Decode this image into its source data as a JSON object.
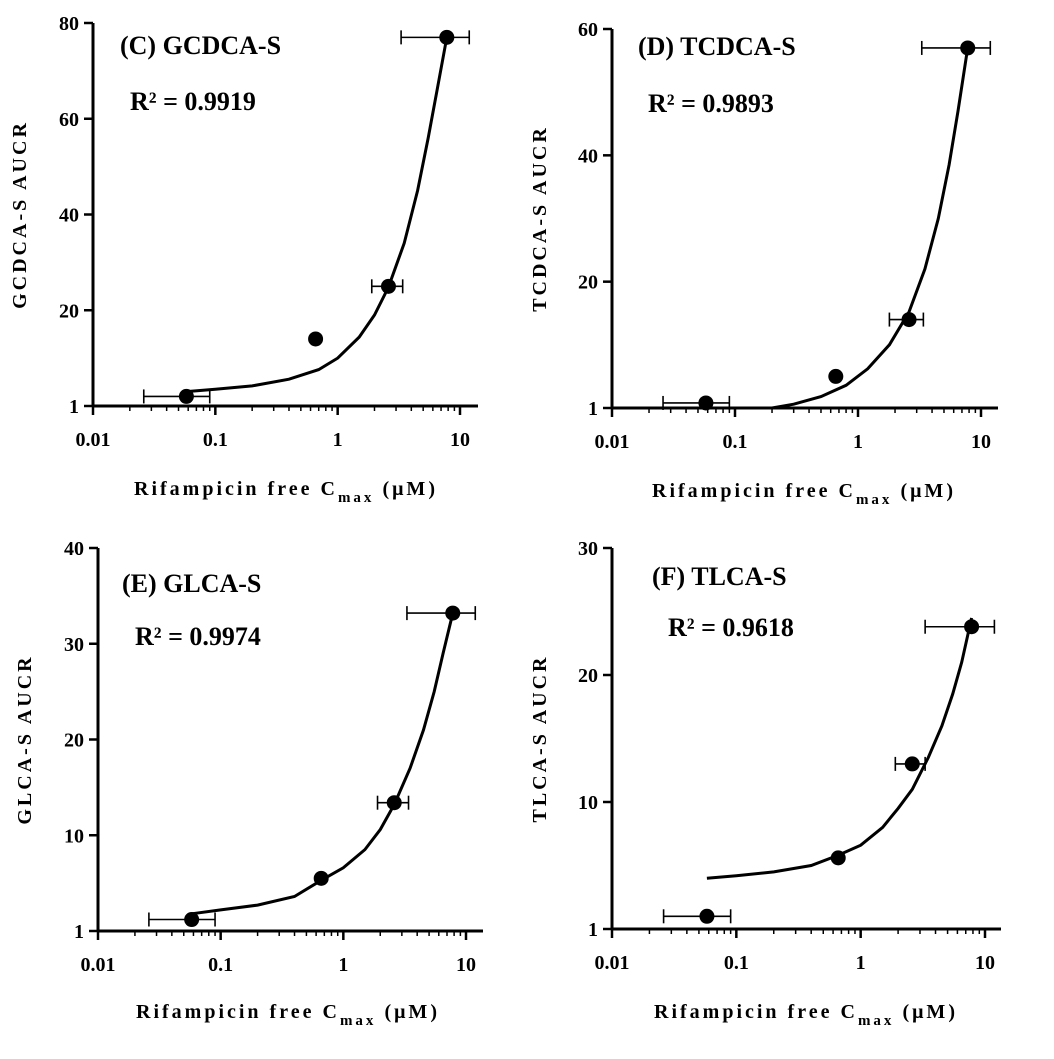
{
  "chart_data": [
    {
      "type": "scatter",
      "title": "(C) GCDCA-S",
      "annotation": "R² = 0.9919",
      "xlabel": "Rifampicin free C_max (μM)",
      "ylabel": "GCDCA-S AUCR",
      "x_scale": "log",
      "xlim": [
        0.01,
        13
      ],
      "x_ticks": [
        "0.01",
        "0.1",
        "1",
        "10"
      ],
      "ylim": [
        0,
        80
      ],
      "y_ticks": [
        "1",
        "20",
        "40",
        "60",
        "80"
      ],
      "points": [
        {
          "x": 0.058,
          "y": 2.0,
          "x_err_low": 0.026,
          "x_err_high": 0.09
        },
        {
          "x": 0.66,
          "y": 14.0
        },
        {
          "x": 2.6,
          "y": 25.0,
          "x_err_low": 1.9,
          "x_err_high": 3.4
        },
        {
          "x": 7.8,
          "y": 77.0,
          "x_err_low": 3.3,
          "x_err_high": 11.9
        }
      ],
      "fit_curve": {
        "x": [
          0.058,
          0.1,
          0.2,
          0.4,
          0.7,
          1.0,
          1.5,
          2.0,
          2.6,
          3.5,
          4.5,
          5.5,
          6.5,
          7.8
        ],
        "y": [
          3.0,
          3.5,
          4.2,
          5.6,
          7.6,
          10.0,
          14.4,
          19.0,
          24.8,
          34.0,
          45.0,
          56.0,
          66.0,
          77.0
        ]
      }
    },
    {
      "type": "scatter",
      "title": "(D) TCDCA-S",
      "annotation": "R² = 0.9893",
      "xlabel": "Rifampicin free C_max (μM)",
      "ylabel": "TCDCA-S AUCR",
      "x_scale": "log",
      "xlim": [
        0.01,
        13
      ],
      "x_ticks": [
        "0.01",
        "0.1",
        "1",
        "10"
      ],
      "ylim": [
        0,
        60
      ],
      "y_ticks": [
        "1",
        "20",
        "40",
        "60"
      ],
      "points": [
        {
          "x": 0.058,
          "y": 0.8,
          "x_err_low": 0.026,
          "x_err_high": 0.09
        },
        {
          "x": 0.66,
          "y": 5.0
        },
        {
          "x": 2.6,
          "y": 14.0,
          "x_err_low": 1.8,
          "x_err_high": 3.4
        },
        {
          "x": 7.8,
          "y": 57.0,
          "x_err_low": 3.3,
          "x_err_high": 11.9
        }
      ],
      "fit_curve": {
        "x": [
          0.2,
          0.3,
          0.5,
          0.8,
          1.2,
          1.8,
          2.6,
          3.5,
          4.5,
          5.5,
          6.5,
          7.8
        ],
        "y": [
          0.0,
          0.6,
          1.8,
          3.6,
          6.2,
          10.0,
          15.2,
          22.0,
          30.0,
          38.5,
          47.0,
          57.0
        ]
      }
    },
    {
      "type": "scatter",
      "title": "(E) GLCA-S",
      "annotation": "R² = 0.9974",
      "xlabel": "Rifampicin free C_max (μM)",
      "ylabel": "GLCA-S AUCR",
      "x_scale": "log",
      "xlim": [
        0.01,
        13
      ],
      "x_ticks": [
        "0.01",
        "0.1",
        "1",
        "10"
      ],
      "ylim": [
        0,
        40
      ],
      "y_ticks": [
        "1",
        "10",
        "20",
        "30",
        "40"
      ],
      "points": [
        {
          "x": 0.058,
          "y": 1.2,
          "x_err_low": 0.026,
          "x_err_high": 0.09
        },
        {
          "x": 0.66,
          "y": 5.5
        },
        {
          "x": 2.6,
          "y": 13.4,
          "x_err_low": 1.9,
          "x_err_high": 3.4
        },
        {
          "x": 7.8,
          "y": 33.2,
          "x_err_low": 3.3,
          "x_err_high": 11.9
        }
      ],
      "fit_curve": {
        "x": [
          0.058,
          0.1,
          0.2,
          0.4,
          0.66,
          1.0,
          1.5,
          2.0,
          2.6,
          3.5,
          4.5,
          5.5,
          6.5,
          7.8
        ],
        "y": [
          1.8,
          2.2,
          2.7,
          3.6,
          5.3,
          6.6,
          8.5,
          10.6,
          13.2,
          17.0,
          21.0,
          25.0,
          29.0,
          33.2
        ]
      }
    },
    {
      "type": "scatter",
      "title": "(F) TLCA-S",
      "annotation": "R² = 0.9618",
      "xlabel": "Rifampicin free C_max (μM)",
      "ylabel": "TLCA-S AUCR",
      "x_scale": "log",
      "xlim": [
        0.01,
        13
      ],
      "x_ticks": [
        "0.01",
        "0.1",
        "1",
        "10"
      ],
      "ylim": [
        0,
        30
      ],
      "y_ticks": [
        "1",
        "10",
        "20",
        "30"
      ],
      "points": [
        {
          "x": 0.058,
          "y": 1.0,
          "x_err_low": 0.026,
          "x_err_high": 0.09
        },
        {
          "x": 0.66,
          "y": 5.6
        },
        {
          "x": 2.6,
          "y": 13.0,
          "x_err_low": 1.9,
          "x_err_high": 3.3
        },
        {
          "x": 7.8,
          "y": 23.8,
          "x_err_low": 3.3,
          "x_err_high": 11.9
        }
      ],
      "fit_curve": {
        "x": [
          0.058,
          0.1,
          0.2,
          0.4,
          0.66,
          1.0,
          1.5,
          2.0,
          2.6,
          3.5,
          4.5,
          5.5,
          6.5,
          7.8
        ],
        "y": [
          4.0,
          4.2,
          4.5,
          5.0,
          5.8,
          6.6,
          8.0,
          9.5,
          11.0,
          13.5,
          16.0,
          18.5,
          21.0,
          24.5
        ]
      }
    }
  ]
}
